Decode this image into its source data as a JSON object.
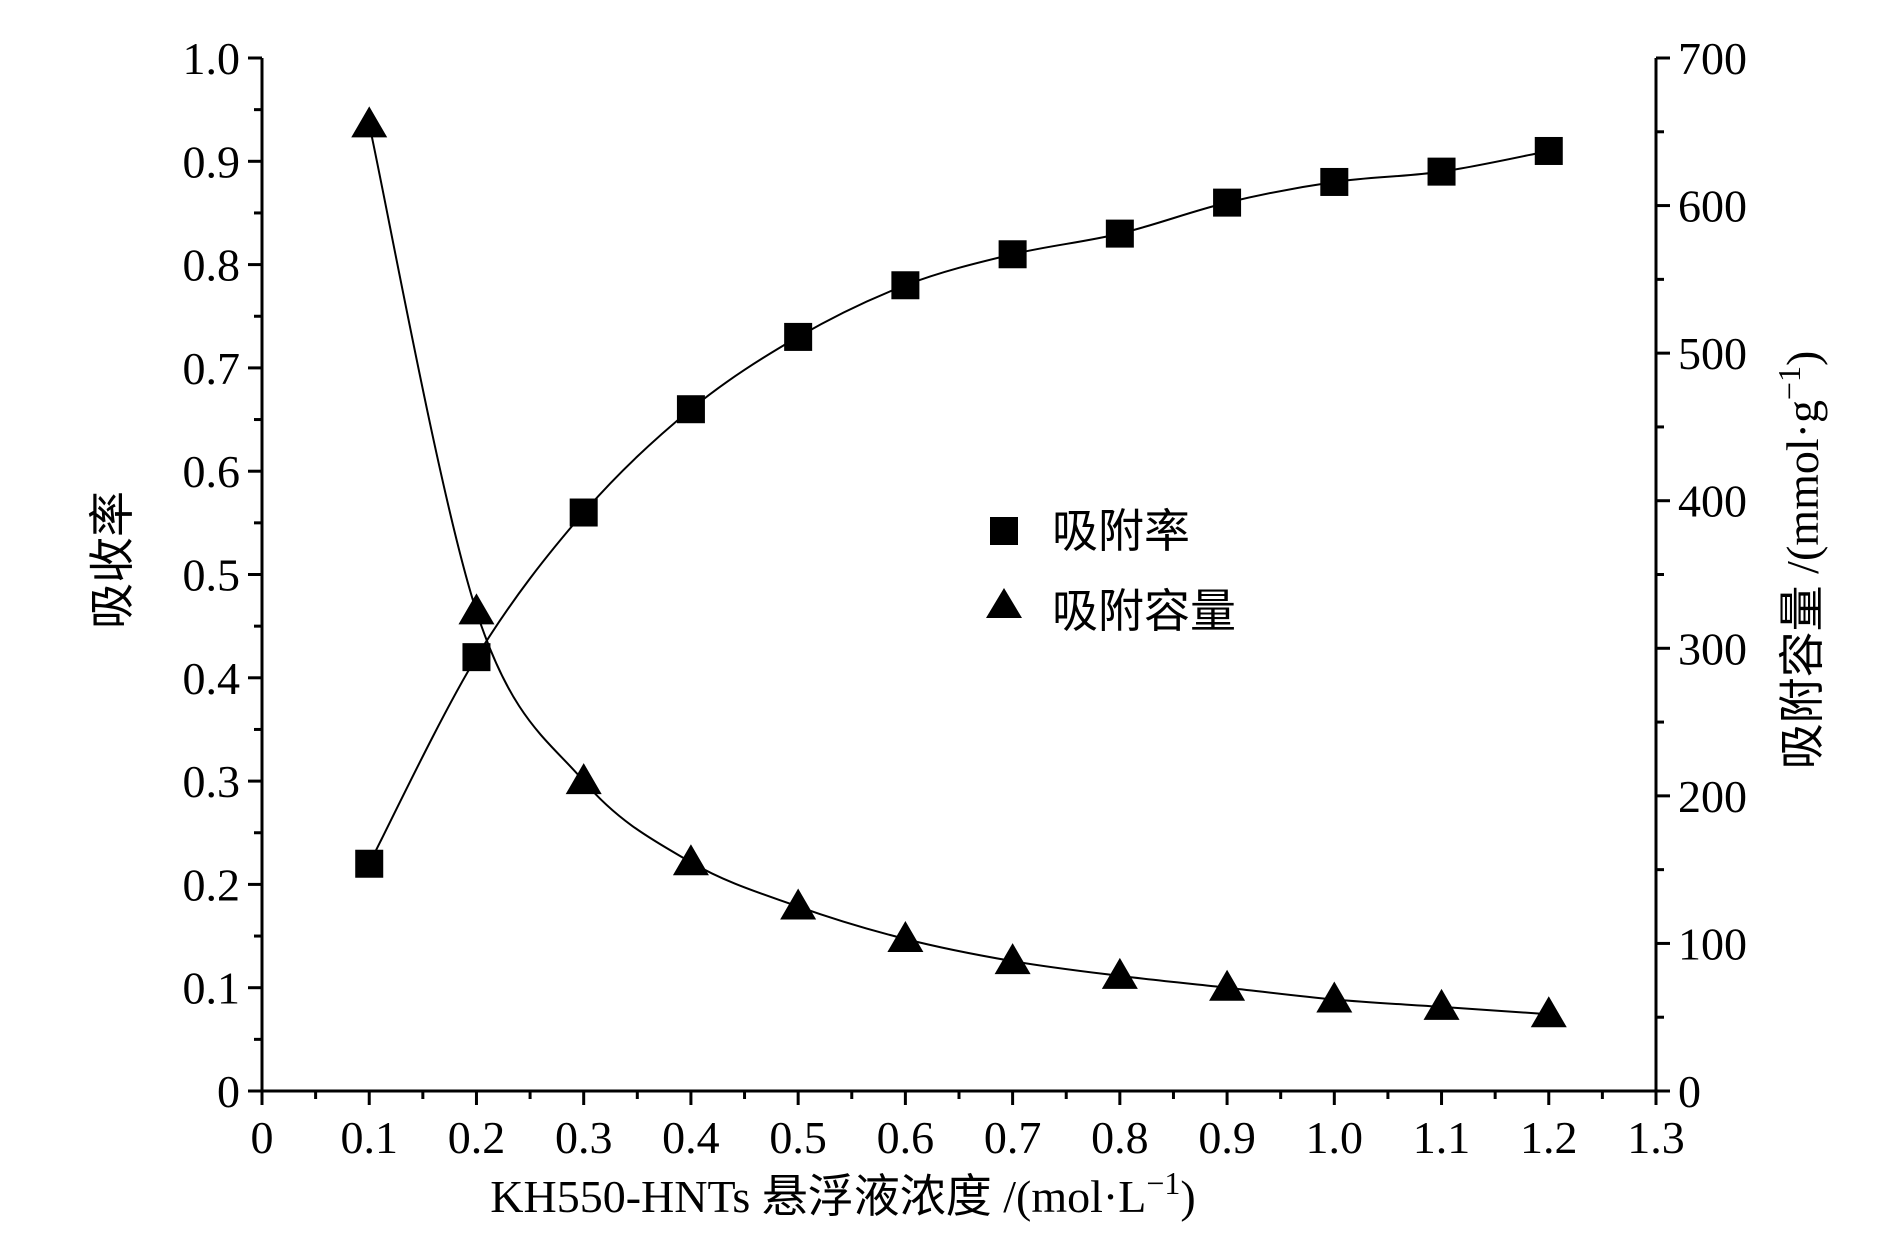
{
  "chart_data": {
    "type": "line",
    "x_axis": {
      "label_main": "KH550-HNTs 悬浮液浓度 /(mol·L",
      "label_sup": "−1",
      "label_tail": ")",
      "range": [
        0,
        1.3
      ],
      "ticks": [
        "0",
        "0.1",
        "0.2",
        "0.3",
        "0.4",
        "0.5",
        "0.6",
        "0.7",
        "0.8",
        "0.9",
        "1.0",
        "1.1",
        "1.2",
        "1.3"
      ]
    },
    "y_left": {
      "label": "吸收率",
      "range": [
        0,
        1.0
      ],
      "ticks": [
        "0",
        "0.1",
        "0.2",
        "0.3",
        "0.4",
        "0.5",
        "0.6",
        "0.7",
        "0.8",
        "0.9",
        "1.0"
      ]
    },
    "y_right": {
      "label_main": "吸附容量 /(mmol·g",
      "label_sup": "−1",
      "label_tail": ")",
      "range": [
        0,
        700
      ],
      "ticks": [
        "0",
        "100",
        "200",
        "300",
        "400",
        "500",
        "600",
        "700"
      ]
    },
    "x": [
      0.1,
      0.2,
      0.3,
      0.4,
      0.5,
      0.6,
      0.7,
      0.8,
      0.9,
      1.0,
      1.1,
      1.2
    ],
    "series": [
      {
        "name": "吸附率",
        "axis": "left",
        "marker": "square",
        "values": [
          0.22,
          0.42,
          0.56,
          0.66,
          0.73,
          0.78,
          0.81,
          0.83,
          0.86,
          0.88,
          0.89,
          0.91
        ]
      },
      {
        "name": "吸附容量",
        "axis": "right",
        "marker": "triangle",
        "values": [
          655,
          325,
          210,
          155,
          125,
          103,
          88,
          78,
          70,
          62,
          57,
          52
        ]
      }
    ],
    "legend_position": "center-right",
    "grid": false,
    "color": "#000000"
  }
}
